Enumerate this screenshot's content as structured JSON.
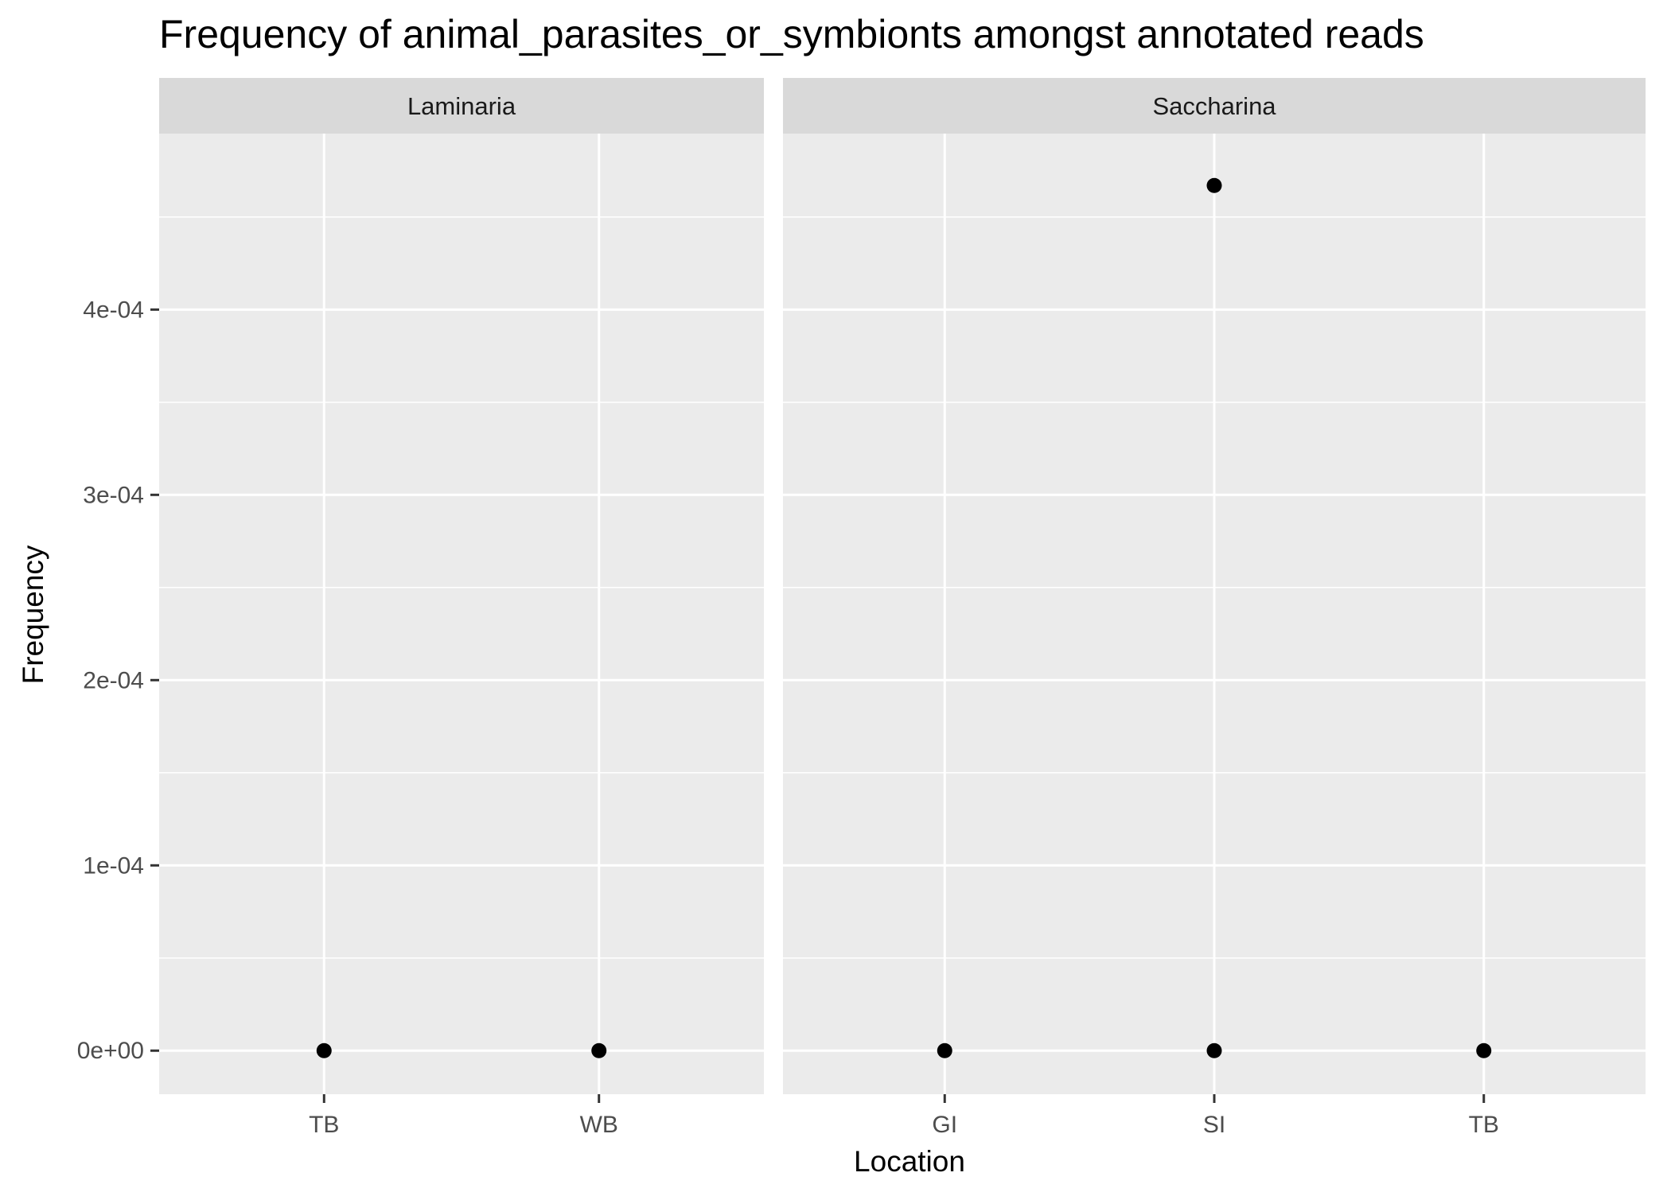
{
  "chart_data": {
    "type": "scatter",
    "title": "Frequency of animal_parasites_or_symbionts amongst annotated reads",
    "xlabel": "Location",
    "ylabel": "Frequency",
    "ylim": [
      -2.35e-05,
      0.000495
    ],
    "y_ticks": [
      0,
      0.0001,
      0.0002,
      0.0003,
      0.0004
    ],
    "y_tick_labels": [
      "0e+00",
      "1e-04",
      "2e-04",
      "3e-04",
      "4e-04"
    ],
    "grid": true,
    "facets": [
      {
        "label": "Laminaria",
        "categories": [
          "TB",
          "WB"
        ],
        "points": [
          {
            "x": "TB",
            "y": 0
          },
          {
            "x": "WB",
            "y": 0
          }
        ]
      },
      {
        "label": "Saccharina",
        "categories": [
          "GI",
          "SI",
          "TB"
        ],
        "points": [
          {
            "x": "GI",
            "y": 0
          },
          {
            "x": "SI",
            "y": 0.000467
          },
          {
            "x": "SI",
            "y": 0
          },
          {
            "x": "TB",
            "y": 0
          }
        ]
      }
    ],
    "colors": {
      "panel_background": "#ebebeb",
      "strip_background": "#d9d9d9",
      "grid": "#ffffff",
      "point": "#000000"
    }
  }
}
